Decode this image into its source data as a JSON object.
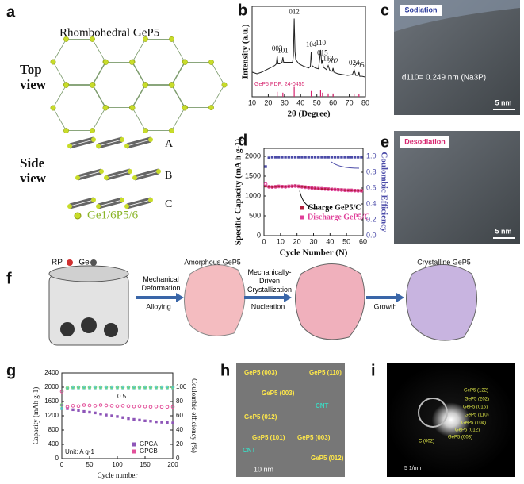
{
  "panels": {
    "labels": [
      "a",
      "b",
      "c",
      "d",
      "e",
      "f",
      "g",
      "h",
      "i"
    ]
  },
  "panel_a": {
    "title": "Rhombohedral GeP5",
    "top_view": "Top view",
    "side_view": "Side view",
    "layers": [
      "A",
      "B",
      "C"
    ],
    "legend": "Ge1/6P5/6"
  },
  "panel_c": {
    "tag": "Sodiation",
    "spacing": "d110= 0.249 nm (Na3P)",
    "scale": "5 nm"
  },
  "panel_e": {
    "tag": "Desodiation",
    "scale": "5 nm"
  },
  "panel_f": {
    "rp": "RP",
    "ge": "Ge",
    "step1_top": "Mechanical Deformation",
    "step1_bottom": "Alloying",
    "state1": "Amorphous GeP5",
    "step2_top": "Mechanically-Driven Crystallization",
    "step2_bottom": "Nucleation",
    "step3": "Growth",
    "state2": "Crystalline GeP5"
  },
  "panel_h": {
    "labels": [
      "GeP5 (003)",
      "GeP5 (110)",
      "GeP5 (003)",
      "CNT",
      "GeP5 (012)",
      "GeP5 (101)",
      "GeP5 (003)",
      "CNT",
      "GeP5 (012)"
    ],
    "scale": "10 nm"
  },
  "panel_i": {
    "labels": [
      "GeP5 (122)",
      "GeP5 (202)",
      "GeP5 (015)",
      "GeP5 (110)",
      "GeP5 (104)",
      "GeP5 (012)",
      "GeP5 (003)",
      "C (002)"
    ],
    "scale": "5 1/nm"
  },
  "chart_data": [
    {
      "type": "line",
      "xlabel": "2θ (Degree)",
      "ylabel": "Intensity (a.u.)",
      "x": [
        10,
        13,
        16,
        19,
        22,
        24,
        25,
        25.5,
        26,
        27,
        28.5,
        29,
        29.5,
        31,
        33,
        35,
        35.5,
        36,
        36.5,
        37,
        39,
        42,
        45,
        46,
        46.5,
        47,
        49,
        51,
        51.8,
        52.3,
        53,
        53.5,
        54,
        56,
        57,
        58,
        59.5,
        60,
        60.5,
        63,
        66,
        69,
        72,
        73,
        74,
        75.5,
        76,
        76.5,
        78,
        80
      ],
      "series": [
        {
          "color": "#222222",
          "values": [
            30,
            28,
            30,
            33,
            36,
            38,
            40,
            50,
            40,
            40,
            42,
            48,
            42,
            42,
            42,
            42,
            50,
            95,
            55,
            45,
            40,
            37,
            35,
            37,
            55,
            38,
            35,
            34,
            47,
            57,
            40,
            45,
            36,
            33,
            38,
            32,
            31,
            35,
            30,
            28,
            27,
            26,
            27,
            33,
            26,
            26,
            30,
            25,
            25,
            24
          ]
        }
      ],
      "peaks": [
        {
          "label": "003",
          "x": 25.5
        },
        {
          "label": "101",
          "x": 29
        },
        {
          "label": "012",
          "x": 36
        },
        {
          "label": "104",
          "x": 46.5
        },
        {
          "label": "110",
          "x": 52.3
        },
        {
          "label": "015",
          "x": 53.5
        },
        {
          "label": "113",
          "x": 57
        },
        {
          "label": "202",
          "x": 60
        },
        {
          "label": "024",
          "x": 73
        },
        {
          "label": "205",
          "x": 76
        }
      ],
      "reference": {
        "name": "GeP5 PDF: 24-0455",
        "color": "#d6246e",
        "x": [
          25.5,
          29,
          36,
          46.5,
          52.3,
          53.5,
          57,
          60,
          73,
          76
        ],
        "values": [
          6,
          5,
          12,
          7,
          8,
          5,
          4,
          4,
          3,
          3
        ]
      },
      "xlim": [
        10,
        80
      ],
      "xticks": [
        10,
        20,
        30,
        40,
        50,
        60,
        70,
        80
      ],
      "ylim": [
        0,
        110
      ]
    },
    {
      "type": "scatter",
      "xlabel": "Cycle Number (N)",
      "ylabel": "Specific Capacity (mA h g-1)",
      "y2label": "Coulombic Efficiency",
      "x": [
        1,
        3,
        5,
        7,
        9,
        11,
        13,
        15,
        17,
        19,
        21,
        23,
        25,
        27,
        29,
        31,
        33,
        35,
        37,
        39,
        41,
        43,
        45,
        47,
        49,
        51,
        53,
        55,
        57,
        59
      ],
      "series": [
        {
          "name": "Charge GeP5/C",
          "color": "#b0203c",
          "values": [
            1250,
            1240,
            1235,
            1240,
            1250,
            1245,
            1240,
            1250,
            1255,
            1260,
            1250,
            1240,
            1230,
            1220,
            1210,
            1200,
            1195,
            1190,
            1185,
            1180,
            1175,
            1170,
            1165,
            1160,
            1155,
            1150,
            1150,
            1145,
            1140,
            1140
          ]
        },
        {
          "name": "Discharge GeP5/C",
          "color": "#e0409a",
          "values": [
            1300,
            1230,
            1225,
            1230,
            1240,
            1235,
            1230,
            1240,
            1245,
            1250,
            1240,
            1230,
            1220,
            1210,
            1200,
            1190,
            1185,
            1180,
            1175,
            1170,
            1165,
            1160,
            1155,
            1150,
            1145,
            1140,
            1140,
            1135,
            1130,
            1130
          ]
        },
        {
          "color": "#4b4ba8",
          "axis": "y2",
          "values": [
            0.87,
            0.98,
            0.99,
            0.99,
            0.99,
            0.99,
            0.99,
            0.99,
            0.99,
            0.99,
            0.99,
            0.99,
            0.99,
            0.99,
            0.99,
            0.99,
            0.99,
            0.99,
            0.99,
            0.99,
            0.99,
            0.99,
            0.99,
            0.99,
            0.99,
            0.99,
            0.99,
            0.99,
            0.99,
            0.99
          ]
        }
      ],
      "xlim": [
        0,
        60
      ],
      "xticks": [
        0,
        10,
        20,
        30,
        40,
        50,
        60
      ],
      "ylim": [
        0,
        2200
      ],
      "yticks": [
        0,
        500,
        1000,
        1500,
        2000
      ],
      "y2lim": [
        0,
        1.1
      ],
      "y2ticks": [
        {
          "value": 0,
          "label": "0.0"
        },
        0.2,
        0.4,
        0.6,
        0.8,
        {
          "value": 1,
          "label": "1.0"
        }
      ]
    },
    {
      "type": "scatter",
      "xlabel": "Cycle number",
      "ylabel": "Capacity (mAh g-1)",
      "y2label": "Coulombic efficiency (%)",
      "annotations": [
        "0.5",
        "Unit: A g-1"
      ],
      "x": [
        0,
        10,
        20,
        30,
        40,
        50,
        60,
        70,
        80,
        90,
        100,
        110,
        120,
        130,
        140,
        150,
        160,
        170,
        180,
        190,
        200
      ],
      "series": [
        {
          "name": "GPCA",
          "color": "#8e56b8",
          "values": [
            1500,
            1400,
            1370,
            1350,
            1320,
            1300,
            1280,
            1250,
            1220,
            1200,
            1180,
            1150,
            1120,
            1100,
            1080,
            1060,
            1050,
            1030,
            1020,
            1010,
            1000
          ]
        },
        {
          "name": "GPCB",
          "color": "#e2509a",
          "values": [
            1880,
            1450,
            1480,
            1470,
            1500,
            1490,
            1480,
            1500,
            1490,
            1480,
            1470,
            1480,
            1470,
            1460,
            1470,
            1460,
            1450,
            1460,
            1450,
            1450,
            1450
          ]
        },
        {
          "color": "#4fc4c4",
          "axis": "y2",
          "values": [
            70,
            98,
            99,
            99,
            99,
            99,
            99,
            99,
            99,
            99,
            99,
            99,
            99,
            99,
            99,
            99,
            99,
            99,
            99,
            99,
            99
          ]
        },
        {
          "color": "#7bd67b",
          "axis": "y2",
          "values": [
            75,
            99,
            100,
            100,
            100,
            100,
            100,
            100,
            100,
            100,
            100,
            100,
            100,
            100,
            100,
            100,
            100,
            100,
            100,
            100,
            100
          ]
        }
      ],
      "xlim": [
        0,
        200
      ],
      "xticks": [
        0,
        50,
        100,
        150,
        200
      ],
      "ylim": [
        0,
        2400
      ],
      "yticks": [
        0,
        400,
        800,
        1200,
        1600,
        2000,
        2400
      ],
      "y2lim": [
        0,
        120
      ],
      "y2ticks": [
        0,
        20,
        40,
        60,
        80,
        100
      ]
    }
  ]
}
